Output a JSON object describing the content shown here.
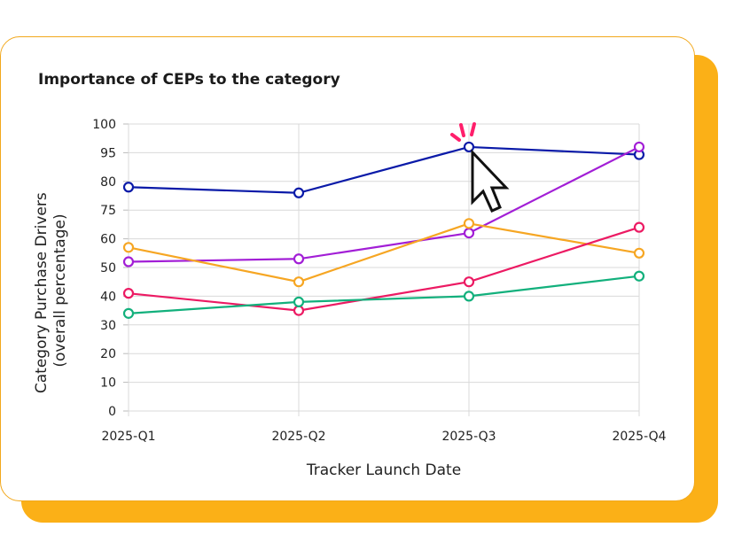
{
  "chart_data": {
    "type": "line",
    "title": "Importance of CEPs to the category",
    "xlabel": "Tracker Launch Date",
    "ylabel": [
      "Category Purchase Drivers",
      "(overall percentage)"
    ],
    "categories": [
      "2025-Q1",
      "2025-Q2",
      "2025-Q3",
      "2025-Q4"
    ],
    "y_ticks": [
      "0",
      "10",
      "20",
      "30",
      "40",
      "50",
      "60",
      "75",
      "80",
      "95",
      "100"
    ],
    "grid": true,
    "series": [
      {
        "color": "#0a1aa8",
        "values": [
          79,
          78,
          96,
          94
        ]
      },
      {
        "color": "#a21ed6",
        "values": [
          52,
          53,
          63,
          96
        ]
      },
      {
        "color": "#f6a623",
        "values": [
          57,
          45,
          68,
          55
        ]
      },
      {
        "color": "#ec1a63",
        "values": [
          41,
          35,
          45,
          66
        ]
      },
      {
        "color": "#12b07c",
        "values": [
          34,
          38,
          40,
          47
        ]
      }
    ]
  },
  "cursor": {
    "icon": "pointer-cursor-icon",
    "accent": "#ff1f6b"
  }
}
